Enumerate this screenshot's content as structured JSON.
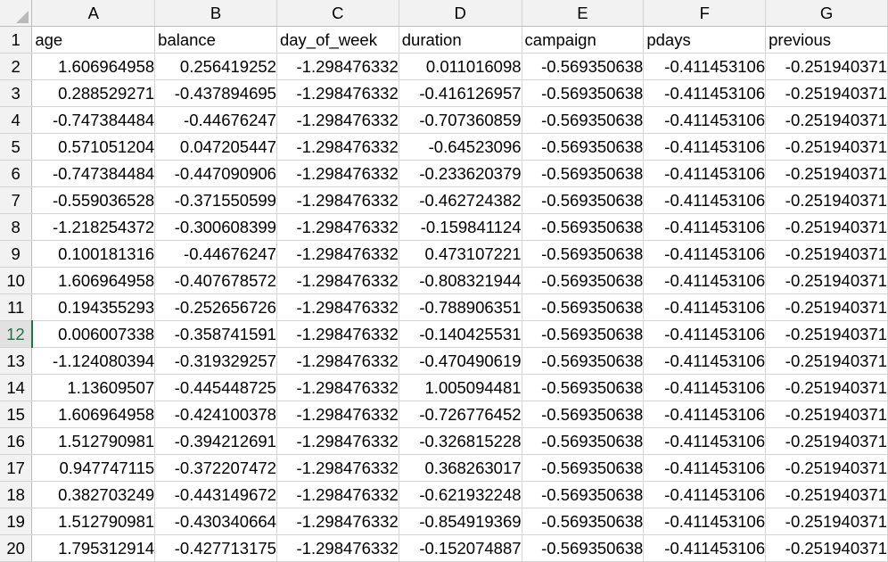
{
  "spreadsheet": {
    "columns": [
      "A",
      "B",
      "C",
      "D",
      "E",
      "F",
      "G"
    ],
    "header_row": {
      "row_number": "1",
      "cells": [
        "age",
        "balance",
        "day_of_week",
        "duration",
        "campaign",
        "pdays",
        "previous"
      ]
    },
    "active_row": "12",
    "rows": [
      {
        "n": "2",
        "cells": [
          "1.606964958",
          "0.256419252",
          "-1.298476332",
          "0.011016098",
          "-0.569350638",
          "-0.411453106",
          "-0.251940371"
        ]
      },
      {
        "n": "3",
        "cells": [
          "0.288529271",
          "-0.437894695",
          "-1.298476332",
          "-0.416126957",
          "-0.569350638",
          "-0.411453106",
          "-0.251940371"
        ]
      },
      {
        "n": "4",
        "cells": [
          "-0.747384484",
          "-0.44676247",
          "-1.298476332",
          "-0.707360859",
          "-0.569350638",
          "-0.411453106",
          "-0.251940371"
        ]
      },
      {
        "n": "5",
        "cells": [
          "0.571051204",
          "0.047205447",
          "-1.298476332",
          "-0.64523096",
          "-0.569350638",
          "-0.411453106",
          "-0.251940371"
        ]
      },
      {
        "n": "6",
        "cells": [
          "-0.747384484",
          "-0.447090906",
          "-1.298476332",
          "-0.233620379",
          "-0.569350638",
          "-0.411453106",
          "-0.251940371"
        ]
      },
      {
        "n": "7",
        "cells": [
          "-0.559036528",
          "-0.371550599",
          "-1.298476332",
          "-0.462724382",
          "-0.569350638",
          "-0.411453106",
          "-0.251940371"
        ]
      },
      {
        "n": "8",
        "cells": [
          "-1.218254372",
          "-0.300608399",
          "-1.298476332",
          "-0.159841124",
          "-0.569350638",
          "-0.411453106",
          "-0.251940371"
        ]
      },
      {
        "n": "9",
        "cells": [
          "0.100181316",
          "-0.44676247",
          "-1.298476332",
          "0.473107221",
          "-0.569350638",
          "-0.411453106",
          "-0.251940371"
        ]
      },
      {
        "n": "10",
        "cells": [
          "1.606964958",
          "-0.407678572",
          "-1.298476332",
          "-0.808321944",
          "-0.569350638",
          "-0.411453106",
          "-0.251940371"
        ]
      },
      {
        "n": "11",
        "cells": [
          "0.194355293",
          "-0.252656726",
          "-1.298476332",
          "-0.788906351",
          "-0.569350638",
          "-0.411453106",
          "-0.251940371"
        ]
      },
      {
        "n": "12",
        "cells": [
          "0.006007338",
          "-0.358741591",
          "-1.298476332",
          "-0.140425531",
          "-0.569350638",
          "-0.411453106",
          "-0.251940371"
        ]
      },
      {
        "n": "13",
        "cells": [
          "-1.124080394",
          "-0.319329257",
          "-1.298476332",
          "-0.470490619",
          "-0.569350638",
          "-0.411453106",
          "-0.251940371"
        ]
      },
      {
        "n": "14",
        "cells": [
          "1.13609507",
          "-0.445448725",
          "-1.298476332",
          "1.005094481",
          "-0.569350638",
          "-0.411453106",
          "-0.251940371"
        ]
      },
      {
        "n": "15",
        "cells": [
          "1.606964958",
          "-0.424100378",
          "-1.298476332",
          "-0.726776452",
          "-0.569350638",
          "-0.411453106",
          "-0.251940371"
        ]
      },
      {
        "n": "16",
        "cells": [
          "1.512790981",
          "-0.394212691",
          "-1.298476332",
          "-0.326815228",
          "-0.569350638",
          "-0.411453106",
          "-0.251940371"
        ]
      },
      {
        "n": "17",
        "cells": [
          "0.947747115",
          "-0.372207472",
          "-1.298476332",
          "0.368263017",
          "-0.569350638",
          "-0.411453106",
          "-0.251940371"
        ]
      },
      {
        "n": "18",
        "cells": [
          "0.382703249",
          "-0.443149672",
          "-1.298476332",
          "-0.621932248",
          "-0.569350638",
          "-0.411453106",
          "-0.251940371"
        ]
      },
      {
        "n": "19",
        "cells": [
          "1.512790981",
          "-0.430340664",
          "-1.298476332",
          "-0.854919369",
          "-0.569350638",
          "-0.411453106",
          "-0.251940371"
        ]
      },
      {
        "n": "20",
        "cells": [
          "1.795312914",
          "-0.427713175",
          "-1.298476332",
          "-0.152074887",
          "-0.569350638",
          "-0.411453106",
          "-0.251940371"
        ]
      }
    ]
  }
}
